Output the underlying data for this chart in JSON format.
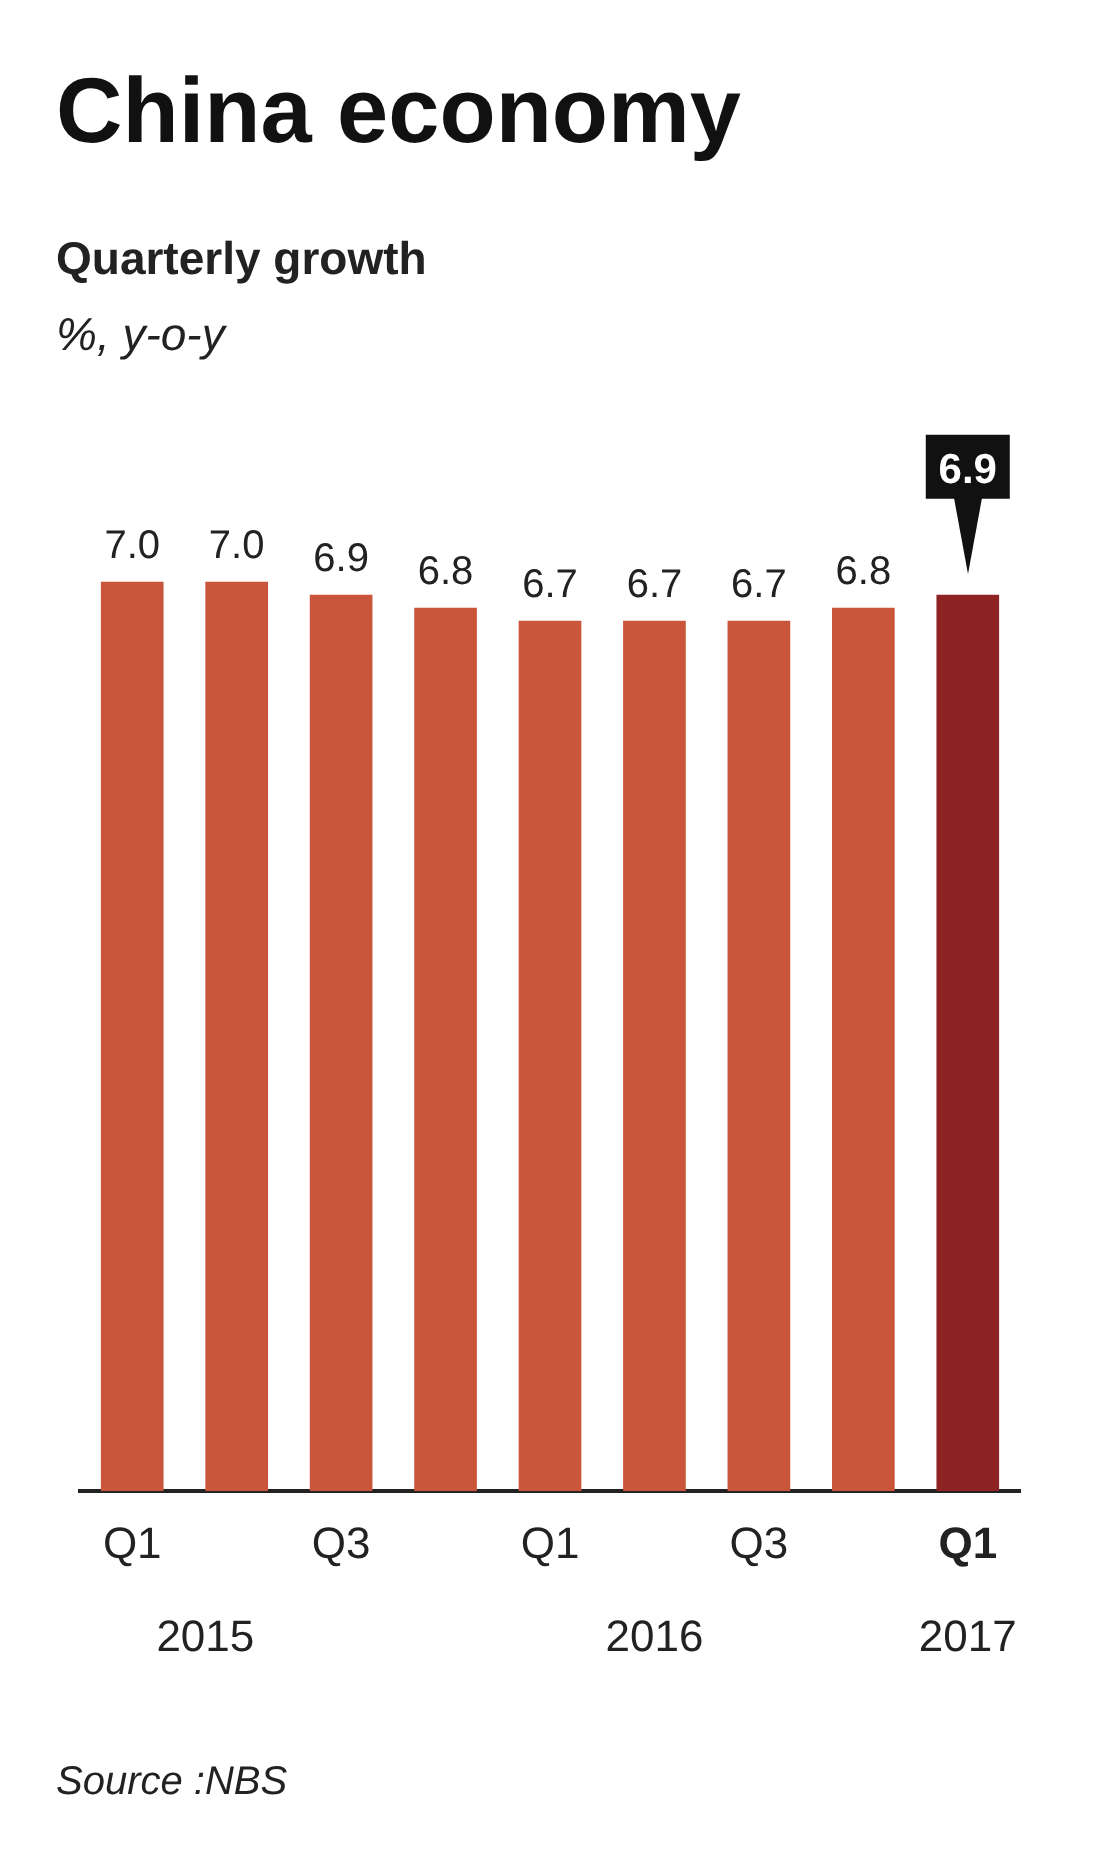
{
  "chart_data": {
    "type": "bar",
    "title": "China economy",
    "subtitle": "Quarterly growth",
    "categories": [
      "Q1",
      null,
      "Q3",
      null,
      "Q1",
      null,
      "Q3",
      null,
      "Q1"
    ],
    "values": [
      7.0,
      7.0,
      6.9,
      6.8,
      6.7,
      6.7,
      6.7,
      6.8,
      6.9
    ],
    "value_labels": [
      "7.0",
      "7.0",
      "6.9",
      "6.8",
      "6.7",
      "6.7",
      "6.7",
      "6.8",
      "6.9"
    ],
    "colors": [
      "#c9553a",
      "#c9553a",
      "#c9553a",
      "#c9553a",
      "#c9553a",
      "#c9553a",
      "#c9553a",
      "#c9553a",
      "#8e2323"
    ],
    "grid": false,
    "legend": false,
    "annotations": [
      "%, y-o-y",
      "2015",
      "2016",
      "2017",
      "Source :NBS"
    ]
  }
}
